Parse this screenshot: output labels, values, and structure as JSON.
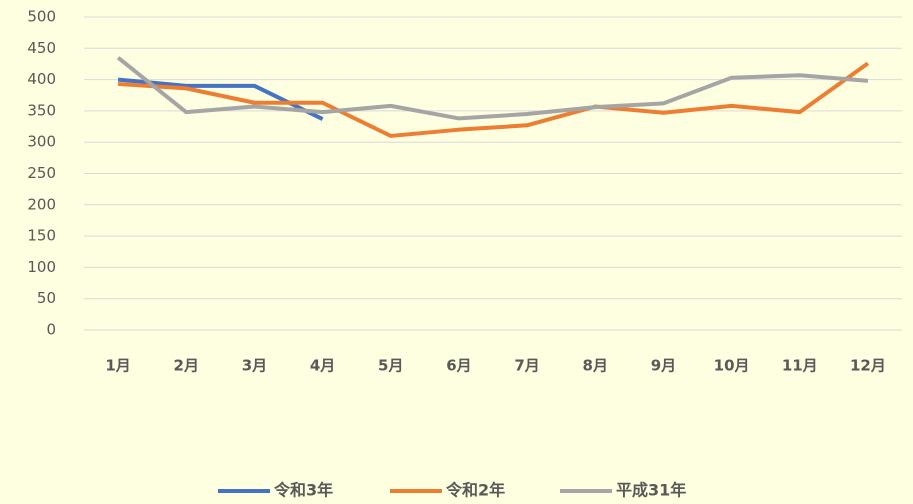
{
  "chart_data": {
    "type": "line",
    "categories": [
      "1月",
      "2月",
      "3月",
      "4月",
      "5月",
      "6月",
      "7月",
      "8月",
      "9月",
      "10月",
      "11月",
      "12月"
    ],
    "series": [
      {
        "name": "令和3年",
        "color": "#4472c4",
        "values": [
          400,
          390,
          390,
          337,
          null,
          null,
          null,
          null,
          null,
          null,
          null,
          null
        ]
      },
      {
        "name": "令和2年",
        "color": "#ed7d31",
        "values": [
          393,
          386,
          363,
          363,
          310,
          320,
          327,
          357,
          347,
          358,
          348,
          426
        ]
      },
      {
        "name": "平成31年",
        "color": "#a5a5a5",
        "values": [
          435,
          348,
          357,
          348,
          358,
          338,
          345,
          356,
          362,
          403,
          407,
          398
        ]
      }
    ],
    "ylim": [
      0,
      500
    ],
    "yticks": [
      0,
      50,
      100,
      150,
      200,
      250,
      300,
      350,
      400,
      450,
      500
    ],
    "grid": true
  }
}
